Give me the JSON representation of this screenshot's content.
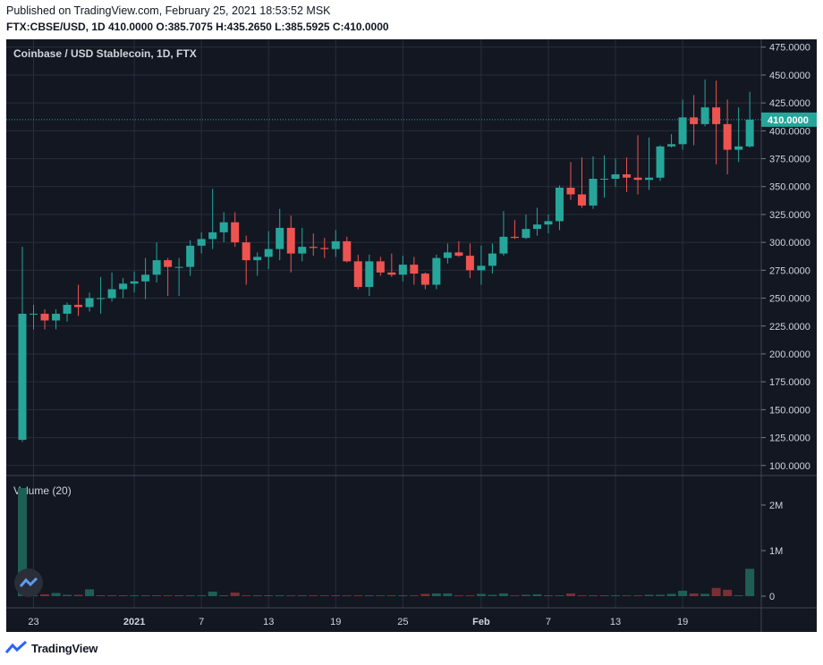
{
  "header": {
    "published": "Published on TradingView.com, February 25, 2021 18:53:52 MSK",
    "ohlc": "FTX:CBSE/USD, 1D 410.0000 O:385.7075 H:435.2650 L:385.5925 C:410.0000"
  },
  "footer": {
    "brand": "TradingView"
  },
  "colors": {
    "background": "#131722",
    "up": "#26a69a",
    "down": "#ef5350",
    "grid": "#2a2e39",
    "text": "#d1d4dc"
  },
  "chart_data": {
    "type": "candlestick",
    "title": "Coinbase / USD Stablecoin, 1D, FTX",
    "price_axis": {
      "ylim": [
        91,
        482
      ],
      "ticks": [
        "100.0000",
        "125.0000",
        "150.0000",
        "175.0000",
        "200.0000",
        "225.0000",
        "250.0000",
        "275.0000",
        "300.0000",
        "325.0000",
        "350.0000",
        "375.0000",
        "400.0000",
        "425.0000",
        "450.0000",
        "475.0000"
      ],
      "last_price_label": "410.0000",
      "last_price": 410
    },
    "x_axis": {
      "labels": [
        {
          "label": "23",
          "index": 1
        },
        {
          "label": "2021",
          "index": 10
        },
        {
          "label": "7",
          "index": 16
        },
        {
          "label": "13",
          "index": 22
        },
        {
          "label": "19",
          "index": 28
        },
        {
          "label": "25",
          "index": 34
        },
        {
          "label": "Feb",
          "index": 41
        },
        {
          "label": "7",
          "index": 47
        },
        {
          "label": "13",
          "index": 53
        },
        {
          "label": "19",
          "index": 59
        }
      ]
    },
    "candles": [
      {
        "o": 123,
        "h": 296,
        "l": 121,
        "c": 236
      },
      {
        "o": 236,
        "h": 244,
        "l": 222,
        "c": 236
      },
      {
        "o": 236,
        "h": 240,
        "l": 222,
        "c": 230
      },
      {
        "o": 230,
        "h": 240,
        "l": 222,
        "c": 236
      },
      {
        "o": 236,
        "h": 246,
        "l": 229,
        "c": 244
      },
      {
        "o": 244,
        "h": 262,
        "l": 234,
        "c": 242
      },
      {
        "o": 242,
        "h": 255,
        "l": 238,
        "c": 250
      },
      {
        "o": 250,
        "h": 269,
        "l": 236,
        "c": 250
      },
      {
        "o": 250,
        "h": 273,
        "l": 247,
        "c": 258
      },
      {
        "o": 258,
        "h": 268,
        "l": 250,
        "c": 263
      },
      {
        "o": 263,
        "h": 274,
        "l": 255,
        "c": 265
      },
      {
        "o": 265,
        "h": 286,
        "l": 249,
        "c": 271
      },
      {
        "o": 271,
        "h": 300,
        "l": 264,
        "c": 284
      },
      {
        "o": 284,
        "h": 286,
        "l": 252,
        "c": 278
      },
      {
        "o": 278,
        "h": 286,
        "l": 252,
        "c": 278
      },
      {
        "o": 278,
        "h": 302,
        "l": 270,
        "c": 297
      },
      {
        "o": 297,
        "h": 309,
        "l": 290,
        "c": 303
      },
      {
        "o": 303,
        "h": 348,
        "l": 294,
        "c": 309
      },
      {
        "o": 309,
        "h": 327,
        "l": 300,
        "c": 318
      },
      {
        "o": 318,
        "h": 327,
        "l": 296,
        "c": 300
      },
      {
        "o": 300,
        "h": 306,
        "l": 262,
        "c": 284
      },
      {
        "o": 284,
        "h": 291,
        "l": 270,
        "c": 287
      },
      {
        "o": 287,
        "h": 310,
        "l": 276,
        "c": 294
      },
      {
        "o": 294,
        "h": 330,
        "l": 284,
        "c": 313
      },
      {
        "o": 313,
        "h": 324,
        "l": 273,
        "c": 290
      },
      {
        "o": 290,
        "h": 313,
        "l": 283,
        "c": 296
      },
      {
        "o": 296,
        "h": 308,
        "l": 288,
        "c": 295
      },
      {
        "o": 295,
        "h": 304,
        "l": 286,
        "c": 294
      },
      {
        "o": 294,
        "h": 311,
        "l": 287,
        "c": 301
      },
      {
        "o": 301,
        "h": 305,
        "l": 282,
        "c": 283
      },
      {
        "o": 283,
        "h": 289,
        "l": 258,
        "c": 260
      },
      {
        "o": 260,
        "h": 289,
        "l": 252,
        "c": 283
      },
      {
        "o": 283,
        "h": 287,
        "l": 270,
        "c": 273
      },
      {
        "o": 273,
        "h": 290,
        "l": 269,
        "c": 271
      },
      {
        "o": 271,
        "h": 288,
        "l": 265,
        "c": 280
      },
      {
        "o": 280,
        "h": 287,
        "l": 262,
        "c": 272
      },
      {
        "o": 272,
        "h": 273,
        "l": 258,
        "c": 262
      },
      {
        "o": 262,
        "h": 289,
        "l": 258,
        "c": 286
      },
      {
        "o": 286,
        "h": 299,
        "l": 281,
        "c": 291
      },
      {
        "o": 291,
        "h": 301,
        "l": 287,
        "c": 288
      },
      {
        "o": 288,
        "h": 299,
        "l": 268,
        "c": 275
      },
      {
        "o": 275,
        "h": 297,
        "l": 262,
        "c": 279
      },
      {
        "o": 279,
        "h": 299,
        "l": 272,
        "c": 290
      },
      {
        "o": 290,
        "h": 328,
        "l": 288,
        "c": 305
      },
      {
        "o": 305,
        "h": 320,
        "l": 303,
        "c": 304
      },
      {
        "o": 304,
        "h": 325,
        "l": 303,
        "c": 312
      },
      {
        "o": 312,
        "h": 331,
        "l": 306,
        "c": 316
      },
      {
        "o": 316,
        "h": 325,
        "l": 308,
        "c": 319
      },
      {
        "o": 319,
        "h": 351,
        "l": 311,
        "c": 349
      },
      {
        "o": 349,
        "h": 372,
        "l": 338,
        "c": 343
      },
      {
        "o": 343,
        "h": 376,
        "l": 331,
        "c": 333
      },
      {
        "o": 333,
        "h": 377,
        "l": 330,
        "c": 357
      },
      {
        "o": 357,
        "h": 378,
        "l": 340,
        "c": 357
      },
      {
        "o": 357,
        "h": 375,
        "l": 350,
        "c": 361
      },
      {
        "o": 361,
        "h": 376,
        "l": 345,
        "c": 358
      },
      {
        "o": 358,
        "h": 396,
        "l": 343,
        "c": 356
      },
      {
        "o": 356,
        "h": 394,
        "l": 347,
        "c": 358
      },
      {
        "o": 358,
        "h": 387,
        "l": 355,
        "c": 386
      },
      {
        "o": 386,
        "h": 397,
        "l": 385,
        "c": 388
      },
      {
        "o": 388,
        "h": 428,
        "l": 383,
        "c": 412
      },
      {
        "o": 412,
        "h": 432,
        "l": 387,
        "c": 406
      },
      {
        "o": 406,
        "h": 446,
        "l": 404,
        "c": 421
      },
      {
        "o": 421,
        "h": 445,
        "l": 370,
        "c": 406
      },
      {
        "o": 406,
        "h": 428,
        "l": 361,
        "c": 383
      },
      {
        "o": 383,
        "h": 421,
        "l": 372,
        "c": 386
      },
      {
        "o": 386,
        "h": 435,
        "l": 385,
        "c": 410
      }
    ],
    "volume": {
      "title": "Volume (20)",
      "ticks": [
        {
          "label": "0",
          "value": 0
        },
        {
          "label": "1M",
          "value": 1000000
        },
        {
          "label": "2M",
          "value": 2000000
        }
      ],
      "ylim": [
        0,
        2400000
      ],
      "values": [
        2400000,
        10000,
        40000,
        70000,
        30000,
        30000,
        150000,
        10000,
        10000,
        5000,
        5000,
        5000,
        20000,
        5000,
        5000,
        10000,
        5000,
        100000,
        10000,
        80000,
        10000,
        5000,
        5000,
        5000,
        5000,
        5000,
        5000,
        5000,
        10000,
        5000,
        5000,
        5000,
        5000,
        5000,
        5000,
        20000,
        50000,
        60000,
        60000,
        20000,
        20000,
        50000,
        30000,
        60000,
        20000,
        30000,
        40000,
        20000,
        20000,
        60000,
        20000,
        20000,
        20000,
        20000,
        20000,
        20000,
        30000,
        30000,
        50000,
        120000,
        60000,
        50000,
        180000,
        140000,
        20000,
        600000
      ]
    }
  }
}
